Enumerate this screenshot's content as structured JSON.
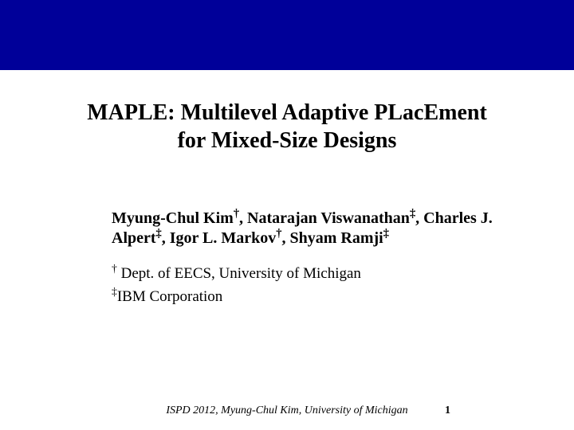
{
  "colors": {
    "header_band": "#000099",
    "background": "#ffffff",
    "text": "#000000"
  },
  "title": {
    "line1": "MAPLE: Multilevel Adaptive PLacEment",
    "line2": "for Mixed-Size Designs",
    "fontsize": 28,
    "fontweight": "bold"
  },
  "authors": {
    "text_part1": "Myung-Chul Kim",
    "sup1": "†",
    "text_part2": ", Natarajan Viswanathan",
    "sup2": "‡",
    "text_part3": ", Charles J. Alpert",
    "sup3": "‡",
    "text_part4": ", Igor L. Markov",
    "sup4": "†",
    "text_part5": ", Shyam Ramji",
    "sup5": "‡",
    "fontsize": 20,
    "fontweight": "bold"
  },
  "affiliations": {
    "line1_sup": "†",
    "line1_text": " Dept. of EECS, University of Michigan",
    "line2_sup": "‡",
    "line2_text": "IBM Corporation",
    "fontsize": 19
  },
  "footer": {
    "conference": "ISPD 2012, Myung-Chul Kim, University of Michigan",
    "page_number": "1",
    "fontsize": 14
  }
}
